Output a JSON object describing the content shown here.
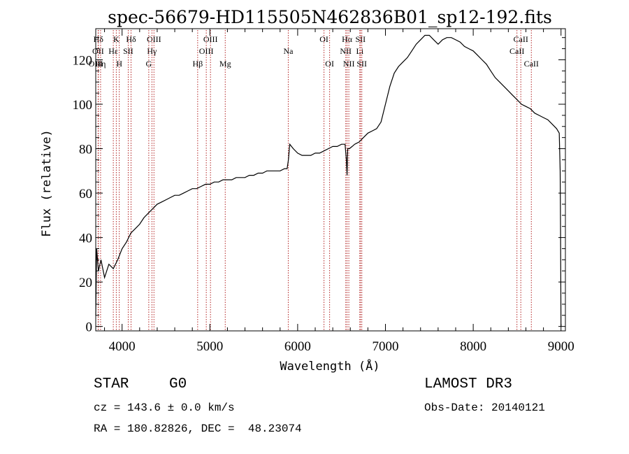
{
  "chart_data": {
    "type": "line",
    "title": "spec-56679-HD115505N462836B01_sp12-192.fits",
    "xlabel": "Wavelength (Å)",
    "ylabel": "Flux (relative)",
    "xlim": [
      3700,
      9050
    ],
    "ylim": [
      -2,
      134
    ],
    "x_ticks": [
      4000,
      5000,
      6000,
      7000,
      8000,
      9000
    ],
    "y_ticks": [
      0,
      20,
      40,
      60,
      80,
      100,
      120
    ],
    "y_tick_labels": [
      "0",
      "20",
      "40",
      "60",
      "80",
      "100",
      "120"
    ],
    "line_color": "#000000",
    "marker_color": "#b22222",
    "series": [
      {
        "name": "flux",
        "x": [
          3700,
          3710,
          3730,
          3760,
          3800,
          3850,
          3900,
          3950,
          4000,
          4050,
          4100,
          4150,
          4200,
          4250,
          4300,
          4350,
          4400,
          4450,
          4500,
          4550,
          4600,
          4650,
          4700,
          4750,
          4800,
          4850,
          4900,
          4950,
          5000,
          5050,
          5100,
          5150,
          5200,
          5250,
          5300,
          5350,
          5400,
          5450,
          5500,
          5550,
          5600,
          5650,
          5700,
          5750,
          5800,
          5850,
          5880,
          5895,
          5910,
          5950,
          6000,
          6050,
          6100,
          6150,
          6200,
          6250,
          6300,
          6350,
          6400,
          6450,
          6500,
          6540,
          6555,
          6563,
          6570,
          6590,
          6620,
          6650,
          6700,
          6750,
          6800,
          6850,
          6900,
          6950,
          7000,
          7050,
          7100,
          7150,
          7200,
          7250,
          7300,
          7350,
          7400,
          7450,
          7500,
          7550,
          7600,
          7650,
          7700,
          7750,
          7800,
          7850,
          7900,
          7950,
          8000,
          8050,
          8100,
          8150,
          8200,
          8250,
          8300,
          8350,
          8400,
          8450,
          8500,
          8550,
          8600,
          8650,
          8700,
          8750,
          8800,
          8850,
          8900,
          8950,
          8980,
          8990,
          8995,
          9000
        ],
        "y": [
          5,
          35,
          25,
          30,
          22,
          28,
          26,
          30,
          35,
          38,
          42,
          44,
          46,
          49,
          51,
          53,
          55,
          56,
          57,
          58,
          59,
          59,
          60,
          61,
          62,
          62,
          63,
          64,
          64,
          65,
          65,
          66,
          66,
          66,
          67,
          67,
          67,
          68,
          68,
          69,
          69,
          70,
          70,
          70,
          70,
          71,
          71,
          75,
          82,
          80,
          78,
          77,
          77,
          77,
          78,
          78,
          79,
          80,
          81,
          81,
          82,
          82,
          75,
          68,
          80,
          80,
          81,
          82,
          83,
          85,
          87,
          88,
          89,
          92,
          100,
          108,
          114,
          117,
          119,
          121,
          124,
          127,
          129,
          131,
          131,
          129,
          127,
          129,
          130,
          130,
          129,
          128,
          126,
          125,
          124,
          122,
          120,
          118,
          115,
          112,
          110,
          108,
          106,
          104,
          102,
          100,
          99,
          98,
          96,
          95,
          94,
          93,
          91,
          89,
          87,
          70,
          40,
          0
        ]
      }
    ],
    "spectral_lines": [
      {
        "label": "Hδ",
        "x": 3730,
        "row": 0
      },
      {
        "label": "OII",
        "x": 3727,
        "row": 1
      },
      {
        "label": "Hη",
        "x": 3755,
        "row": 2
      },
      {
        "label": "OIII",
        "x": 3700,
        "row": 2
      },
      {
        "label": "K",
        "x": 3934,
        "row": 0
      },
      {
        "label": "Hε",
        "x": 3900,
        "row": 1
      },
      {
        "label": "H",
        "x": 3968,
        "row": 2
      },
      {
        "label": "SII",
        "x": 4070,
        "row": 1
      },
      {
        "label": "Hδ",
        "x": 4102,
        "row": 0
      },
      {
        "label": "OIII",
        "x": 4363,
        "row": 0
      },
      {
        "label": "Hγ",
        "x": 4340,
        "row": 1
      },
      {
        "label": "G",
        "x": 4304,
        "row": 2
      },
      {
        "label": "Hβ",
        "x": 4861,
        "row": 2
      },
      {
        "label": "OIII",
        "x": 5007,
        "row": 0
      },
      {
        "label": "OIII",
        "x": 4959,
        "row": 1
      },
      {
        "label": "Mg",
        "x": 5175,
        "row": 2
      },
      {
        "label": "Na",
        "x": 5893,
        "row": 1
      },
      {
        "label": "OI",
        "x": 6300,
        "row": 0
      },
      {
        "label": "OI",
        "x": 6364,
        "row": 2
      },
      {
        "label": "Hα",
        "x": 6563,
        "row": 0
      },
      {
        "label": "SII",
        "x": 6716,
        "row": 0
      },
      {
        "label": "NII",
        "x": 6548,
        "row": 1
      },
      {
        "label": "Li",
        "x": 6708,
        "row": 1
      },
      {
        "label": "NII",
        "x": 6583,
        "row": 2
      },
      {
        "label": "SII",
        "x": 6731,
        "row": 2
      },
      {
        "label": "CaII",
        "x": 8542,
        "row": 0
      },
      {
        "label": "CaII",
        "x": 8498,
        "row": 1
      },
      {
        "label": "CaII",
        "x": 8662,
        "row": 2
      }
    ]
  },
  "info": {
    "object_type": "STAR",
    "subclass": "G0",
    "survey": "LAMOST DR3",
    "cz": "cz = 143.6 ± 0.0 km/s",
    "obs_date": "Obs-Date: 20140121",
    "coords": "RA = 180.82826, DEC =  48.23074"
  }
}
